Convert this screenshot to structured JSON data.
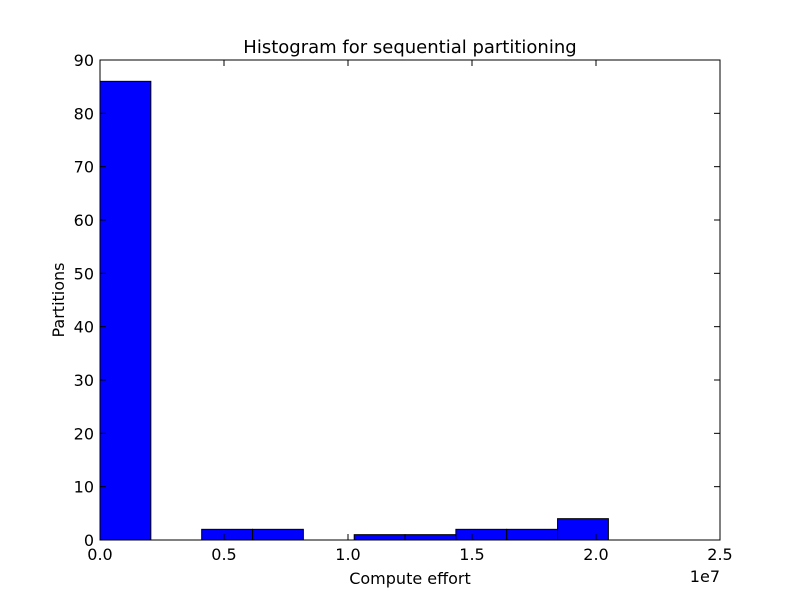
{
  "chart_data": {
    "type": "bar",
    "title": "Histogram for sequential partitioning",
    "xlabel": "Compute effort",
    "ylabel": "Partitions",
    "x_offset_label": "1e7",
    "xlim": [
      0,
      2.5
    ],
    "ylim": [
      0,
      90
    ],
    "x_ticks": [
      {
        "value": 0,
        "label": "0.0"
      },
      {
        "value": 0.5,
        "label": "0.5"
      },
      {
        "value": 1.0,
        "label": "1.0"
      },
      {
        "value": 1.5,
        "label": "1.5"
      },
      {
        "value": 2.0,
        "label": "2.0"
      },
      {
        "value": 2.5,
        "label": "2.5"
      }
    ],
    "y_ticks": [
      {
        "value": 0,
        "label": "0"
      },
      {
        "value": 10,
        "label": "10"
      },
      {
        "value": 20,
        "label": "20"
      },
      {
        "value": 30,
        "label": "30"
      },
      {
        "value": 40,
        "label": "40"
      },
      {
        "value": 50,
        "label": "50"
      },
      {
        "value": 60,
        "label": "60"
      },
      {
        "value": 70,
        "label": "70"
      },
      {
        "value": 80,
        "label": "80"
      },
      {
        "value": 90,
        "label": "90"
      }
    ],
    "bins": [
      {
        "x0": 0.0,
        "x1": 0.205,
        "count": 86
      },
      {
        "x0": 0.205,
        "x1": 0.41,
        "count": 0
      },
      {
        "x0": 0.41,
        "x1": 0.615,
        "count": 2
      },
      {
        "x0": 0.615,
        "x1": 0.82,
        "count": 2
      },
      {
        "x0": 0.82,
        "x1": 1.025,
        "count": 0
      },
      {
        "x0": 1.025,
        "x1": 1.23,
        "count": 1
      },
      {
        "x0": 1.23,
        "x1": 1.435,
        "count": 1
      },
      {
        "x0": 1.435,
        "x1": 1.64,
        "count": 2
      },
      {
        "x0": 1.64,
        "x1": 1.845,
        "count": 2
      },
      {
        "x0": 1.845,
        "x1": 2.05,
        "count": 4
      }
    ],
    "bar_color": "#0000ff",
    "edge_color": "#000000",
    "grid": false
  }
}
